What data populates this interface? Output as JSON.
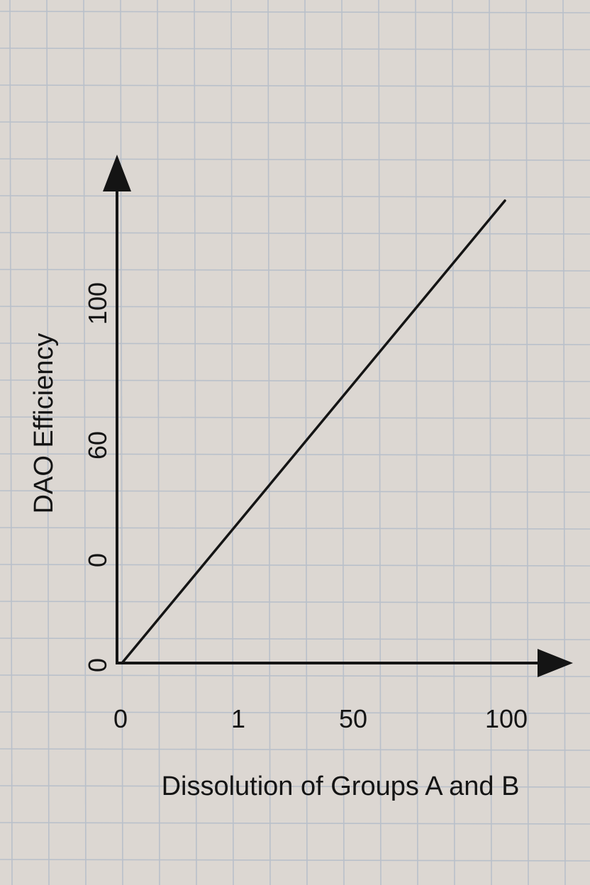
{
  "chart_data": {
    "type": "line",
    "title": "",
    "xlabel": "Dissolution of Groups A and B",
    "ylabel": "DAO Efficiency",
    "x_tick_labels": [
      "0",
      "1",
      "50",
      "100"
    ],
    "y_tick_labels": [
      "0",
      "0",
      "60",
      "100"
    ],
    "series": [
      {
        "points": [
          [
            0,
            0
          ],
          [
            100,
            129
          ]
        ]
      }
    ],
    "grid": true,
    "background": "graph paper",
    "colors": {
      "paper": "#dcd7d2",
      "grid": "#b9c0ca",
      "ink": "#141414"
    }
  }
}
